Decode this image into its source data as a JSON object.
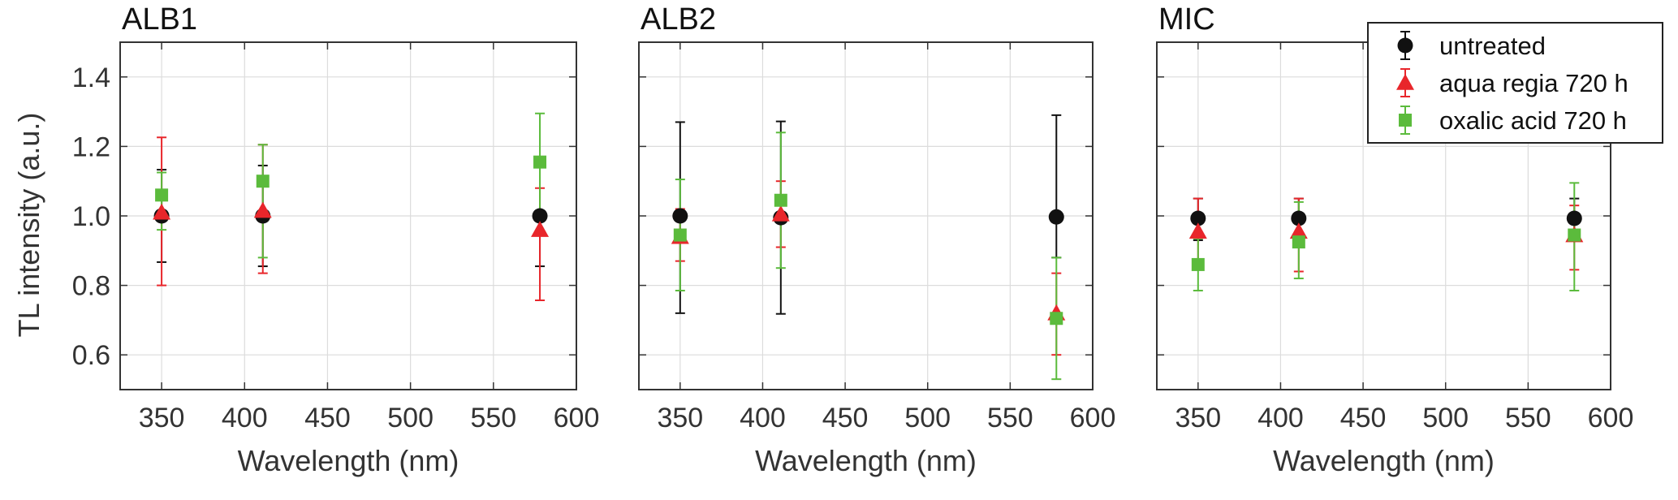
{
  "chart_data": {
    "type": "scatter",
    "shared_ylabel": "TL intensity (a.u.)",
    "legend": {
      "placement": "top-right",
      "entries": [
        {
          "label": "untreated",
          "marker": "circle",
          "color": "#111111"
        },
        {
          "label": "aqua regia 720 h",
          "marker": "triangle",
          "color": "#e8262b"
        },
        {
          "label": "oxalic acid 720 h",
          "marker": "square",
          "color": "#5bbb3c"
        }
      ]
    },
    "grid": true,
    "panels": [
      {
        "title": "ALB1",
        "xlabel": "Wavelength (nm)",
        "xlim": [
          325,
          600
        ],
        "ylim": [
          0.5,
          1.5
        ],
        "xticks": [
          "350",
          "400",
          "450",
          "500",
          "550",
          "600"
        ],
        "yticks": [
          "0.6",
          "0.8",
          "1.0",
          "1.2",
          "1.4"
        ],
        "show_y_tick_labels": true,
        "series": [
          {
            "name": "untreated",
            "x": [
              350,
              411,
              578
            ],
            "y": [
              1.0,
              1.0,
              1.0
            ],
            "err_low": [
              0.867,
              0.855,
              0.855
            ],
            "err_high": [
              1.133,
              1.145,
              1.005
            ]
          },
          {
            "name": "aqua regia 720 h",
            "x": [
              350,
              411,
              578
            ],
            "y": [
              1.01,
              1.015,
              0.96
            ],
            "err_low": [
              0.8,
              0.835,
              0.757
            ],
            "err_high": [
              1.226,
              1.205,
              1.08
            ]
          },
          {
            "name": "oxalic acid 720 h",
            "x": [
              350,
              411,
              578
            ],
            "y": [
              1.06,
              1.1,
              1.155
            ],
            "err_low": [
              0.96,
              0.88,
              0.995
            ],
            "err_high": [
              1.125,
              1.205,
              1.295
            ]
          }
        ]
      },
      {
        "title": "ALB2",
        "xlabel": "Wavelength (nm)",
        "xlim": [
          325,
          600
        ],
        "ylim": [
          0.5,
          1.5
        ],
        "xticks": [
          "350",
          "400",
          "450",
          "500",
          "550",
          "600"
        ],
        "yticks": [
          "0.6",
          "0.8",
          "1.0",
          "1.2",
          "1.4"
        ],
        "show_y_tick_labels": false,
        "series": [
          {
            "name": "untreated",
            "x": [
              350,
              411,
              578
            ],
            "y": [
              1.0,
              0.995,
              0.997
            ],
            "err_low": [
              0.72,
              0.718,
              0.88
            ],
            "err_high": [
              1.27,
              1.272,
              1.29
            ]
          },
          {
            "name": "aqua regia 720 h",
            "x": [
              350,
              411,
              578
            ],
            "y": [
              0.94,
              1.005,
              0.72
            ],
            "err_low": [
              0.87,
              0.91,
              0.6
            ],
            "err_high": [
              1.02,
              1.1,
              0.835
            ]
          },
          {
            "name": "oxalic acid 720 h",
            "x": [
              350,
              411,
              578
            ],
            "y": [
              0.945,
              1.045,
              0.705
            ],
            "err_low": [
              0.785,
              0.85,
              0.53
            ],
            "err_high": [
              1.105,
              1.24,
              0.88
            ]
          }
        ]
      },
      {
        "title": "MIC",
        "xlabel": "Wavelength (nm)",
        "xlim": [
          325,
          600
        ],
        "ylim": [
          0.5,
          1.5
        ],
        "xticks": [
          "350",
          "400",
          "450",
          "500",
          "550",
          "600"
        ],
        "yticks": [
          "0.6",
          "0.8",
          "1.0",
          "1.2",
          "1.4"
        ],
        "show_y_tick_labels": false,
        "series": [
          {
            "name": "untreated",
            "x": [
              350,
              411,
              578
            ],
            "y": [
              0.993,
              0.993,
              0.993
            ],
            "err_low": [
              0.93,
              0.94,
              0.94
            ],
            "err_high": [
              1.05,
              1.05,
              1.05
            ]
          },
          {
            "name": "aqua regia 720 h",
            "x": [
              350,
              411,
              578
            ],
            "y": [
              0.955,
              0.955,
              0.945
            ],
            "err_low": [
              0.86,
              0.84,
              0.845
            ],
            "err_high": [
              1.05,
              1.05,
              1.03
            ]
          },
          {
            "name": "oxalic acid 720 h",
            "x": [
              350,
              411,
              578
            ],
            "y": [
              0.86,
              0.925,
              0.945
            ],
            "err_low": [
              0.785,
              0.82,
              0.785
            ],
            "err_high": [
              0.935,
              1.04,
              1.095
            ]
          }
        ]
      }
    ]
  }
}
